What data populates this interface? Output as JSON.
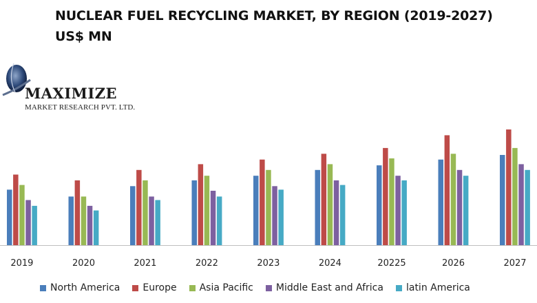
{
  "header": {
    "title_line1": "NUCLEAR FUEL RECYCLING MARKET, BY REGION (2019-2027)",
    "title_line2": "US$ MN"
  },
  "logo": {
    "name": "MAXIMIZE",
    "tagline": "MARKET RESEARCH PVT. LTD."
  },
  "chart_data": {
    "type": "bar",
    "title": "NUCLEAR FUEL RECYCLING MARKET, BY REGION (2019-2027) US$ MN",
    "xlabel": "",
    "ylabel": "",
    "ylim": [
      0,
      100
    ],
    "grid": false,
    "legend_position": "bottom",
    "categories": [
      "2019",
      "2020",
      "2021",
      "2022",
      "2023",
      "2024",
      "20225",
      "2026",
      "2027"
    ],
    "series": [
      {
        "name": "North America",
        "color": "#4a7ebb",
        "values": [
          48,
          42,
          51,
          56,
          60,
          65,
          69,
          74,
          78
        ]
      },
      {
        "name": "Europe",
        "color": "#be4b48",
        "values": [
          61,
          56,
          65,
          70,
          74,
          79,
          84,
          95,
          100
        ]
      },
      {
        "name": "Asia Pacific",
        "color": "#98b954",
        "values": [
          52,
          42,
          56,
          60,
          65,
          70,
          75,
          79,
          84
        ]
      },
      {
        "name": "Middle East and Africa",
        "color": "#7d60a0",
        "values": [
          39,
          34,
          42,
          47,
          51,
          56,
          60,
          65,
          70
        ]
      },
      {
        "name": "latin America",
        "color": "#46aac5",
        "values": [
          34,
          30,
          39,
          42,
          48,
          52,
          56,
          60,
          65
        ]
      }
    ]
  }
}
